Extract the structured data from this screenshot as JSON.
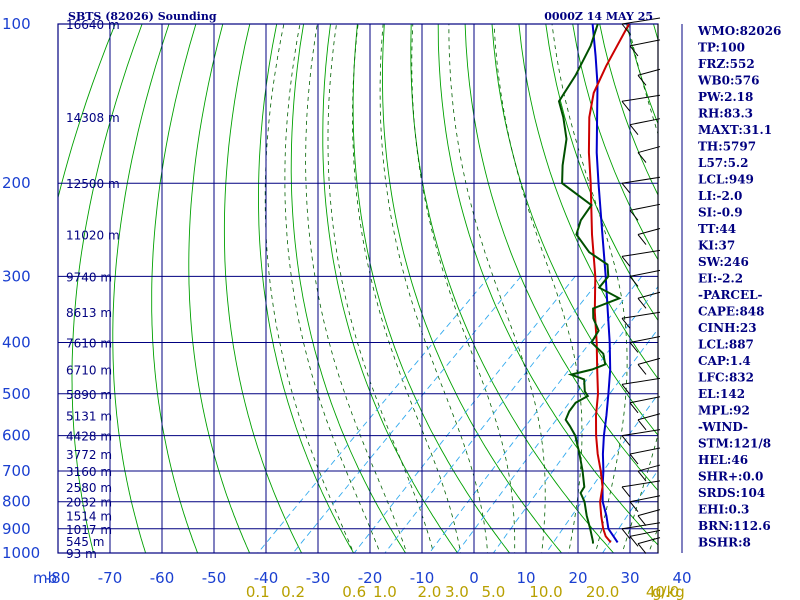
{
  "header": {
    "station": "SBTS (82026) Sounding",
    "time": "0000Z 14 MAY 25",
    "pressure_unit": "mb",
    "mixing_ratio_unit": "g/kg"
  },
  "indices": [
    "WMO:82026",
    "TP:100",
    "FRZ:552",
    "WB0:576",
    "PW:2.18",
    "RH:83.3",
    "MAXT:31.1",
    "TH:5797",
    "L57:5.2",
    "LCL:949",
    "LI:-2.0",
    "SI:-0.9",
    "TT:44",
    "KI:37",
    "SW:246",
    "EI:-2.2",
    "-PARCEL-",
    "CAPE:848",
    "CINH:23",
    "LCL:887",
    "CAP:1.4",
    "LFC:832",
    "EL:142",
    "MPL:92",
    "-WIND-",
    "STM:121/8",
    "HEL:46",
    "SHR+:0.0",
    "SRDS:104",
    "EHI:0.3",
    "BRN:112.6",
    "BSHR:8"
  ],
  "colors": {
    "grid": "#000080",
    "dry_adiabat": "#00a000",
    "moist_adiabat": "#006000",
    "mixing_ratio": "#33aaee",
    "temperature": "#cc0000",
    "dewpoint": "#005000",
    "parcel": "#0000cc",
    "mr_labels": "#b8a000"
  },
  "chart_data": {
    "type": "line",
    "title": "SBTS (82026) Sounding",
    "subtitle": "0000Z 14 MAY 25",
    "xlabel": "",
    "ylabel": "mb",
    "log_pressure": true,
    "skew": "skew-T",
    "temperature_ticks": [
      "-80",
      "-70",
      "-60",
      "-50",
      "-40",
      "-30",
      "-20",
      "-10",
      "0",
      "10",
      "20",
      "30",
      "40"
    ],
    "temperature_tick_values": [
      -80,
      -70,
      -60,
      -50,
      -40,
      -30,
      -20,
      -10,
      0,
      10,
      20,
      30,
      40
    ],
    "pressure_ticks": [
      "100",
      "200",
      "300",
      "400",
      "500",
      "600",
      "700",
      "800",
      "900",
      "1000"
    ],
    "pressure_tick_values": [
      100,
      200,
      300,
      400,
      500,
      600,
      700,
      800,
      900,
      1000
    ],
    "height_labels": [
      {
        "p": 100,
        "label": "16640 m"
      },
      {
        "p": 150,
        "label": "14308 m"
      },
      {
        "p": 200,
        "label": "12500 m"
      },
      {
        "p": 250,
        "label": "11020 m"
      },
      {
        "p": 300,
        "label": "9740 m"
      },
      {
        "p": 350,
        "label": "8613 m"
      },
      {
        "p": 400,
        "label": "7610 m"
      },
      {
        "p": 450,
        "label": "6710 m"
      },
      {
        "p": 500,
        "label": "5890 m"
      },
      {
        "p": 550,
        "label": "5131 m"
      },
      {
        "p": 600,
        "label": "4428 m"
      },
      {
        "p": 650,
        "label": "3772 m"
      },
      {
        "p": 700,
        "label": "3160 m"
      },
      {
        "p": 750,
        "label": "2580 m"
      },
      {
        "p": 800,
        "label": "2032 m"
      },
      {
        "p": 850,
        "label": "1514 m"
      },
      {
        "p": 900,
        "label": "1017 m"
      },
      {
        "p": 950,
        "label": "545 m"
      },
      {
        "p": 1000,
        "label": "93 m"
      }
    ],
    "mixing_ratio_labels": [
      "0.1",
      "0.2",
      "0.6",
      "1.0",
      "2.0",
      "3.0",
      "5.0",
      "10.0",
      "20.0",
      "40.0"
    ],
    "mixing_ratio_values": [
      0.1,
      0.2,
      0.6,
      1.0,
      2.0,
      3.0,
      5.0,
      10.0,
      20.0,
      40.0
    ],
    "series": [
      {
        "key": "temperature",
        "points": [
          {
            "p": 955,
            "t": 24.2
          },
          {
            "p": 930,
            "t": 22.0
          },
          {
            "p": 900,
            "t": 20.0
          },
          {
            "p": 850,
            "t": 17.0
          },
          {
            "p": 800,
            "t": 14.0
          },
          {
            "p": 750,
            "t": 11.5
          },
          {
            "p": 700,
            "t": 8.0
          },
          {
            "p": 650,
            "t": 4.0
          },
          {
            "p": 600,
            "t": 0.0
          },
          {
            "p": 550,
            "t": -4.0
          },
          {
            "p": 500,
            "t": -8.0
          },
          {
            "p": 450,
            "t": -13.0
          },
          {
            "p": 400,
            "t": -18.5
          },
          {
            "p": 350,
            "t": -25.0
          },
          {
            "p": 300,
            "t": -32.0
          },
          {
            "p": 250,
            "t": -41.0
          },
          {
            "p": 200,
            "t": -51.5
          },
          {
            "p": 175,
            "t": -58.0
          },
          {
            "p": 150,
            "t": -65.0
          },
          {
            "p": 135,
            "t": -69.0
          },
          {
            "p": 120,
            "t": -72.0
          },
          {
            "p": 100,
            "t": -76.0
          }
        ]
      },
      {
        "key": "dewpoint",
        "points": [
          {
            "p": 960,
            "t": 21.0
          },
          {
            "p": 950,
            "t": 20.5
          },
          {
            "p": 900,
            "t": 17.5
          },
          {
            "p": 850,
            "t": 14.2
          },
          {
            "p": 800,
            "t": 11.0
          },
          {
            "p": 770,
            "t": 8.5
          },
          {
            "p": 750,
            "t": 8.0
          },
          {
            "p": 700,
            "t": 4.5
          },
          {
            "p": 650,
            "t": 0.5
          },
          {
            "p": 600,
            "t": -4.0
          },
          {
            "p": 575,
            "t": -7.0
          },
          {
            "p": 560,
            "t": -9.0
          },
          {
            "p": 540,
            "t": -10.0
          },
          {
            "p": 520,
            "t": -10.5
          },
          {
            "p": 505,
            "t": -9.5
          },
          {
            "p": 495,
            "t": -11.0
          },
          {
            "p": 480,
            "t": -12.5
          },
          {
            "p": 470,
            "t": -13.5
          },
          {
            "p": 460,
            "t": -17.0
          },
          {
            "p": 450,
            "t": -14.0
          },
          {
            "p": 440,
            "t": -12.5
          },
          {
            "p": 420,
            "t": -15.0
          },
          {
            "p": 400,
            "t": -19.5
          },
          {
            "p": 380,
            "t": -20.5
          },
          {
            "p": 360,
            "t": -24.0
          },
          {
            "p": 345,
            "t": -26.0
          },
          {
            "p": 330,
            "t": -23.0
          },
          {
            "p": 315,
            "t": -29.0
          },
          {
            "p": 300,
            "t": -29.5
          },
          {
            "p": 285,
            "t": -32.0
          },
          {
            "p": 270,
            "t": -38.0
          },
          {
            "p": 250,
            "t": -44.0
          },
          {
            "p": 235,
            "t": -46.0
          },
          {
            "p": 220,
            "t": -47.0
          },
          {
            "p": 200,
            "t": -57.0
          },
          {
            "p": 185,
            "t": -60.5
          },
          {
            "p": 165,
            "t": -65.0
          },
          {
            "p": 150,
            "t": -70.0
          },
          {
            "p": 140,
            "t": -74.0
          },
          {
            "p": 125,
            "t": -76.0
          },
          {
            "p": 110,
            "t": -79.0
          },
          {
            "p": 100,
            "t": -82.0
          }
        ]
      },
      {
        "key": "parcel",
        "points": [
          {
            "p": 955,
            "t": 25.5
          },
          {
            "p": 930,
            "t": 23.5
          },
          {
            "p": 900,
            "t": 21.0
          },
          {
            "p": 850,
            "t": 18.0
          },
          {
            "p": 800,
            "t": 14.5
          },
          {
            "p": 750,
            "t": 11.5
          },
          {
            "p": 700,
            "t": 8.5
          },
          {
            "p": 650,
            "t": 5.0
          },
          {
            "p": 600,
            "t": 1.5
          },
          {
            "p": 550,
            "t": -2.0
          },
          {
            "p": 500,
            "t": -6.0
          },
          {
            "p": 450,
            "t": -10.5
          },
          {
            "p": 400,
            "t": -16.0
          },
          {
            "p": 350,
            "t": -22.5
          },
          {
            "p": 300,
            "t": -30.0
          },
          {
            "p": 250,
            "t": -39.0
          },
          {
            "p": 200,
            "t": -50.0
          },
          {
            "p": 175,
            "t": -56.5
          },
          {
            "p": 150,
            "t": -63.5
          },
          {
            "p": 130,
            "t": -70.0
          },
          {
            "p": 115,
            "t": -76.0
          },
          {
            "p": 100,
            "t": -83.0
          }
        ]
      }
    ],
    "wind_profile_pressures": [
      100,
      110,
      125,
      140,
      155,
      175,
      200,
      225,
      250,
      275,
      300,
      330,
      360,
      400,
      440,
      480,
      520,
      560,
      600,
      650,
      700,
      750,
      800,
      850,
      900,
      930,
      960
    ],
    "legend_position": "right"
  }
}
